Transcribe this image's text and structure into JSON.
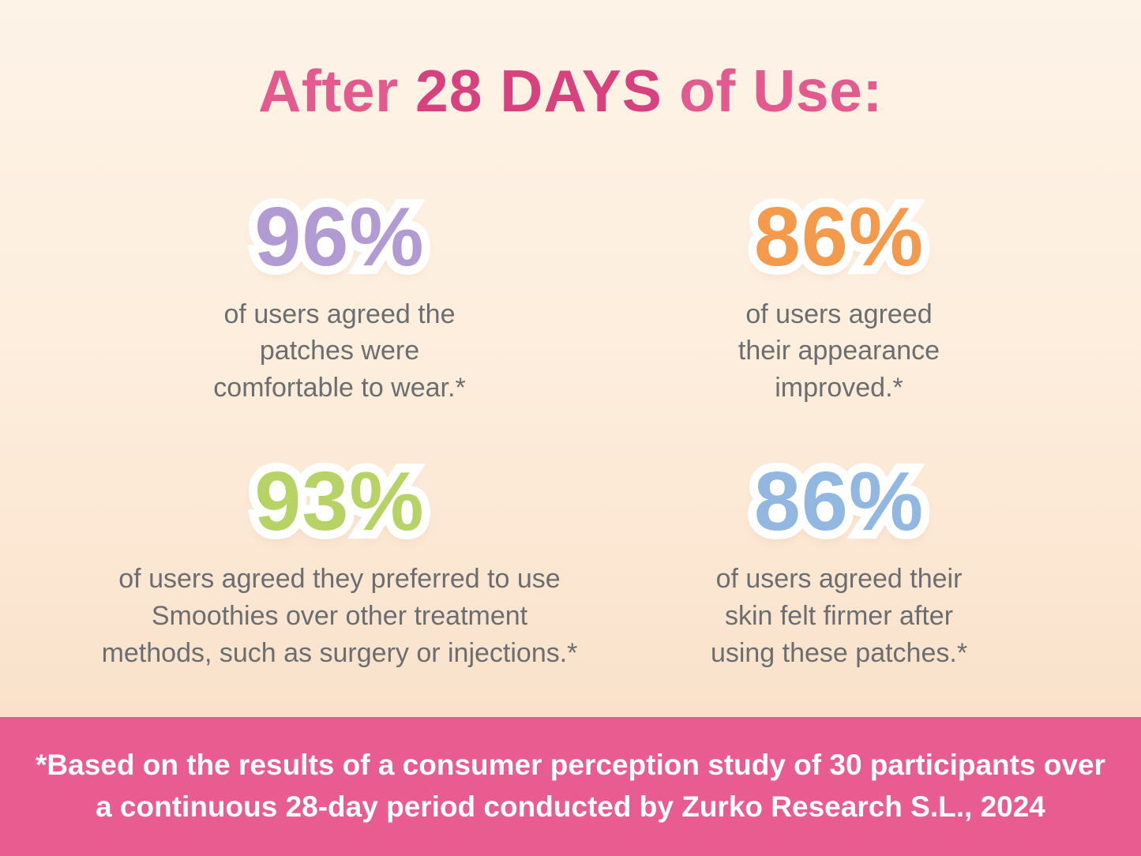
{
  "title": {
    "prefix": "After ",
    "highlight": "28 DAYS",
    "suffix": " of Use:",
    "color": "#e25a8e",
    "highlight_color": "#d7417e"
  },
  "stats": [
    {
      "value": "96%",
      "color": "#b19bd2",
      "description": "of users agreed the\npatches were\ncomfortable to wear.*"
    },
    {
      "value": "86%",
      "color": "#f49a4d",
      "description": "of users agreed\ntheir appearance\nimproved.*"
    },
    {
      "value": "93%",
      "color": "#b7d366",
      "description": "of users agreed they preferred to use\nSmoothies over other treatment\nmethods, such as surgery or injections.*"
    },
    {
      "value": "86%",
      "color": "#92b8e1",
      "description": "of users agreed their\nskin felt firmer after\nusing these patches.*"
    }
  ],
  "footnote": {
    "text": "*Based on the results of a consumer perception study of 30 participants over\na continuous 28-day period conducted by Zurko Research S.L., 2024",
    "background": "#e95c90",
    "text_color": "#ffffff"
  },
  "chart_data": {
    "type": "table",
    "title": "After 28 DAYS of Use:",
    "categories": [
      "of users agreed the patches were comfortable to wear",
      "of users agreed their appearance improved",
      "of users agreed they preferred to use Smoothies over other treatment methods, such as surgery or injections",
      "of users agreed their skin felt firmer after using these patches"
    ],
    "values": [
      96,
      86,
      93,
      86
    ],
    "unit": "%",
    "annotations": [
      "*Based on the results of a consumer perception study of 30 participants over a continuous 28-day period conducted by Zurko Research S.L., 2024"
    ]
  }
}
